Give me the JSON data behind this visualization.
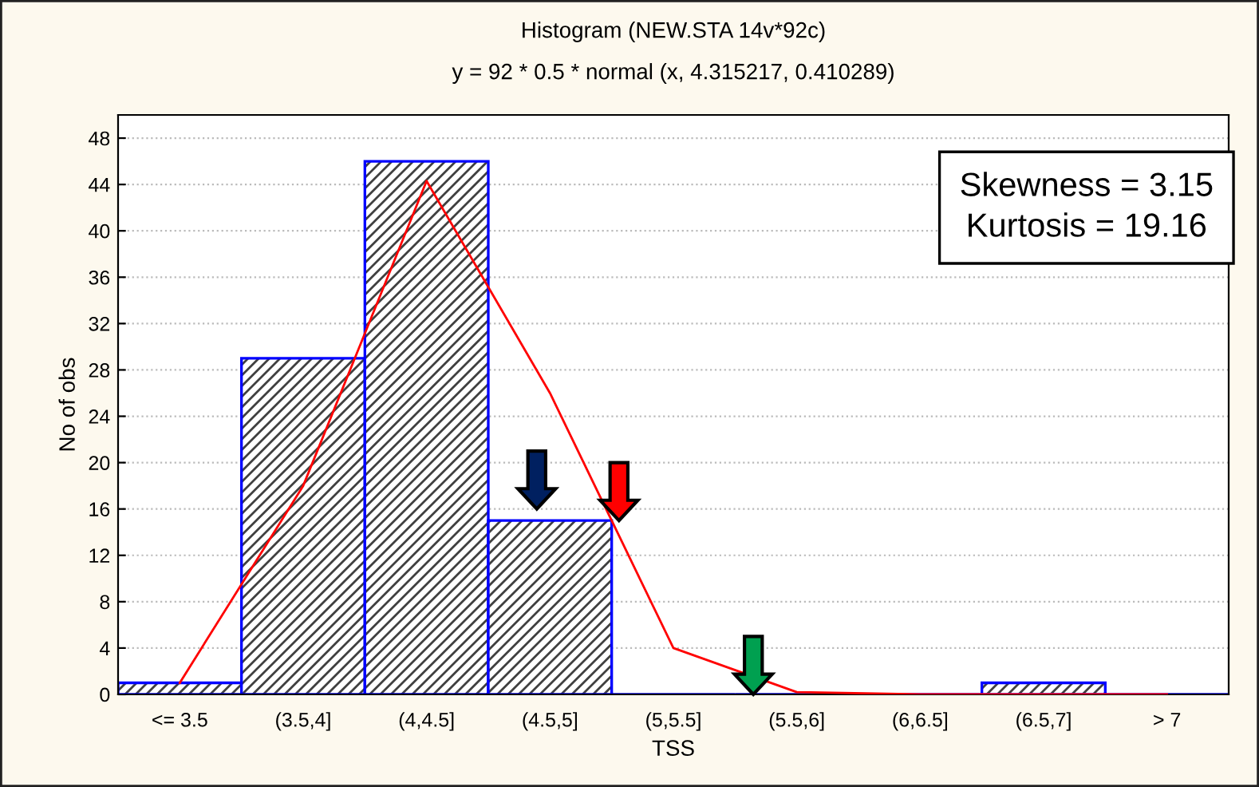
{
  "chart_data": {
    "type": "bar",
    "title": "Histogram (NEW.STA 14v*92c)",
    "subtitle": "y = 92 * 0.5 * normal (x, 4.315217, 0.410289)",
    "xlabel": "TSS",
    "ylabel": "No of obs",
    "categories": [
      "<= 3.5",
      "(3.5,4]",
      "(4,4.5]",
      "(4.5,5]",
      "(5,5.5]",
      "(5.5,6]",
      "(6,6.5]",
      "(6.5,7]",
      "> 7"
    ],
    "series": [
      {
        "color": "#0000ff",
        "values": [
          1,
          29,
          46,
          15,
          0,
          0,
          0,
          1,
          0
        ]
      },
      {
        "type": "line",
        "color": "#ff0000",
        "values": [
          1.0,
          18.0,
          44.3,
          26.0,
          4.0,
          0.2,
          0,
          0,
          0
        ]
      }
    ],
    "ylim": [
      0,
      50
    ],
    "yticks": [
      0,
      4,
      8,
      12,
      16,
      20,
      24,
      28,
      32,
      36,
      40,
      44,
      48
    ],
    "grid": "y",
    "annotations": [
      "Skewness = 3.15",
      "Kurtosis = 19.16"
    ]
  }
}
